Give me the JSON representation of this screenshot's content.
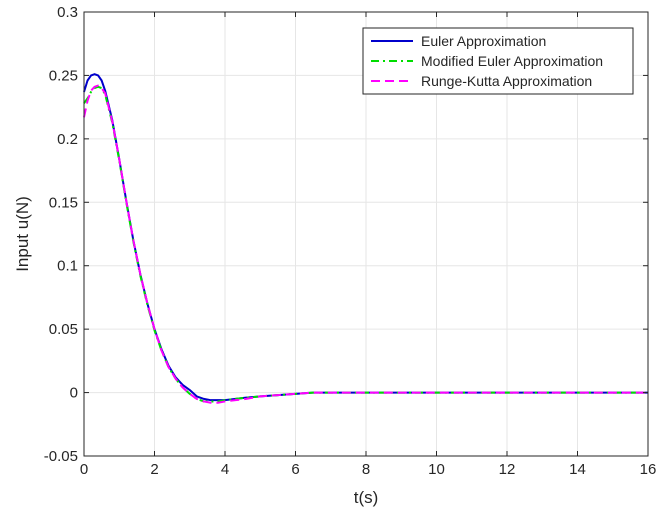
{
  "chart_data": {
    "type": "line",
    "title": "",
    "xlabel": "t(s)",
    "ylabel": "Input u(N)",
    "xlim": [
      0,
      16
    ],
    "ylim": [
      -0.05,
      0.3
    ],
    "xticks": [
      0,
      2,
      4,
      6,
      8,
      10,
      12,
      14,
      16
    ],
    "yticks": [
      -0.05,
      0,
      0.05,
      0.1,
      0.15,
      0.2,
      0.25,
      0.3
    ],
    "xtick_labels": [
      "0",
      "2",
      "4",
      "6",
      "8",
      "10",
      "12",
      "14",
      "16"
    ],
    "ytick_labels": [
      "-0.05",
      "0",
      "0.05",
      "0.1",
      "0.15",
      "0.2",
      "0.25",
      "0.3"
    ],
    "grid": true,
    "legend_position": "top-right",
    "series": [
      {
        "name": "Euler Approximation",
        "color": "#0000cc",
        "style": "solid",
        "x": [
          0,
          0.1,
          0.2,
          0.3,
          0.4,
          0.5,
          0.6,
          0.8,
          1.0,
          1.2,
          1.4,
          1.6,
          1.8,
          2.0,
          2.2,
          2.4,
          2.6,
          2.8,
          3.0,
          3.2,
          3.4,
          3.6,
          3.8,
          4.0,
          4.3,
          4.6,
          5.0,
          5.5,
          6.0,
          6.5,
          7,
          8,
          9,
          10,
          11,
          12,
          13,
          14,
          15,
          16
        ],
        "y": [
          0.237,
          0.246,
          0.25,
          0.251,
          0.25,
          0.246,
          0.238,
          0.215,
          0.184,
          0.151,
          0.12,
          0.093,
          0.07,
          0.05,
          0.034,
          0.021,
          0.012,
          0.006,
          0.002,
          -0.003,
          -0.005,
          -0.006,
          -0.006,
          -0.006,
          -0.005,
          -0.004,
          -0.003,
          -0.002,
          -0.001,
          0,
          0,
          0,
          0,
          0,
          0,
          0,
          0,
          0,
          0,
          0
        ]
      },
      {
        "name": "Modified Euler Approximation",
        "color": "#00dd00",
        "style": "dashdot",
        "x": [
          0,
          0.1,
          0.2,
          0.3,
          0.4,
          0.5,
          0.6,
          0.8,
          1.0,
          1.2,
          1.4,
          1.6,
          1.8,
          2.0,
          2.2,
          2.4,
          2.6,
          2.8,
          3.0,
          3.2,
          3.4,
          3.6,
          3.8,
          4.0,
          4.3,
          4.6,
          5.0,
          5.5,
          6.0,
          6.5,
          7,
          8,
          9,
          10,
          11,
          12,
          13,
          14,
          15,
          16
        ],
        "y": [
          0.228,
          0.232,
          0.237,
          0.24,
          0.241,
          0.24,
          0.235,
          0.213,
          0.183,
          0.15,
          0.119,
          0.092,
          0.069,
          0.049,
          0.033,
          0.02,
          0.011,
          0.004,
          -0.001,
          -0.005,
          -0.007,
          -0.007,
          -0.007,
          -0.006,
          -0.005,
          -0.004,
          -0.003,
          -0.002,
          -0.001,
          0,
          0,
          0,
          0,
          0,
          0,
          0,
          0,
          0,
          0,
          0
        ]
      },
      {
        "name": "Runge-Kutta Approximation",
        "color": "#ff00ff",
        "style": "dashed",
        "x": [
          0,
          0.1,
          0.2,
          0.3,
          0.4,
          0.5,
          0.6,
          0.8,
          1.0,
          1.2,
          1.4,
          1.6,
          1.8,
          2.0,
          2.2,
          2.4,
          2.6,
          2.8,
          3.0,
          3.2,
          3.4,
          3.6,
          3.8,
          4.0,
          4.3,
          4.6,
          5.0,
          5.5,
          6.0,
          6.5,
          7,
          8,
          9,
          10,
          11,
          12,
          13,
          14,
          15,
          16
        ],
        "y": [
          0.217,
          0.23,
          0.238,
          0.241,
          0.242,
          0.24,
          0.236,
          0.214,
          0.184,
          0.151,
          0.12,
          0.093,
          0.07,
          0.05,
          0.033,
          0.02,
          0.011,
          0.004,
          -0.001,
          -0.005,
          -0.007,
          -0.008,
          -0.008,
          -0.007,
          -0.006,
          -0.005,
          -0.003,
          -0.002,
          -0.001,
          0,
          0,
          0,
          0,
          0,
          0,
          0,
          0,
          0,
          0,
          0
        ]
      }
    ]
  }
}
